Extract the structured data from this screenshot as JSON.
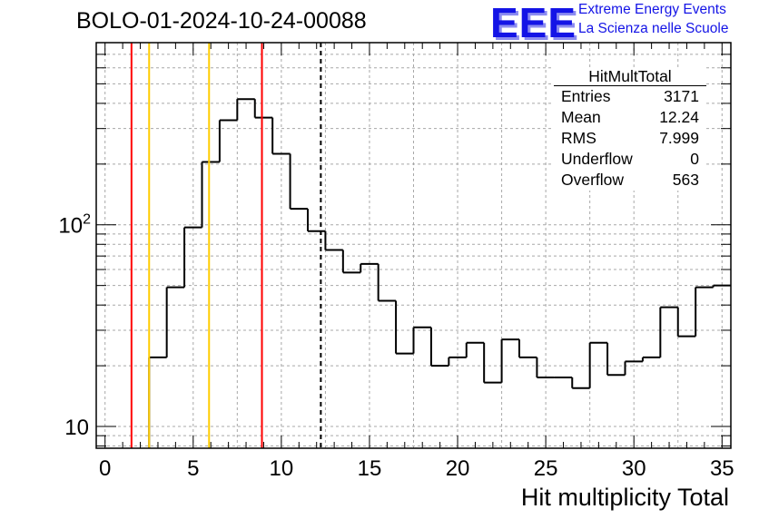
{
  "title": "BOLO-01-2024-10-24-00088",
  "logo": {
    "text": "EEE",
    "line1": "Extreme Energy Events",
    "line2": "La Scienza nelle Scuole",
    "color": "#1414e6"
  },
  "stats": {
    "name": "HitMultTotal",
    "rows": [
      {
        "label": "Entries",
        "value": "3171"
      },
      {
        "label": "Mean",
        "value": "12.24"
      },
      {
        "label": "RMS",
        "value": "7.999"
      },
      {
        "label": "Underflow",
        "value": "0"
      },
      {
        "label": "Overflow",
        "value": "563"
      }
    ]
  },
  "chart_data": {
    "type": "histogram",
    "title": "BOLO-01-2024-10-24-00088",
    "xlabel": "Hit multiplicity Total",
    "ylabel": "",
    "yscale": "log",
    "xlim": [
      -0.5,
      35.5
    ],
    "ylim": [
      7.8,
      800
    ],
    "xticks": [
      0,
      5,
      10,
      15,
      20,
      25,
      30,
      35
    ],
    "yticks": [
      {
        "value": 10,
        "label": "10"
      },
      {
        "value": 100,
        "label": "10^2"
      }
    ],
    "grid": true,
    "bin_width": 1,
    "bin_edges_start": -0.5,
    "values": [
      0,
      0,
      0,
      22,
      49,
      97,
      205,
      330,
      420,
      340,
      225,
      120,
      93,
      75,
      58,
      64,
      42,
      23,
      31,
      20,
      22,
      26,
      16.5,
      27,
      22,
      17.5,
      17.5,
      15.5,
      26,
      18,
      21,
      22,
      39,
      28,
      49,
      50
    ],
    "reference_lines": [
      {
        "x": 1.5,
        "color": "#ff0000",
        "style": "solid"
      },
      {
        "x": 2.5,
        "color": "#ffcc00",
        "style": "solid"
      },
      {
        "x": 5.9,
        "color": "#ffcc00",
        "style": "solid"
      },
      {
        "x": 8.9,
        "color": "#ff0000",
        "style": "solid"
      },
      {
        "x": 12.24,
        "color": "#000000",
        "style": "dashed"
      }
    ]
  }
}
